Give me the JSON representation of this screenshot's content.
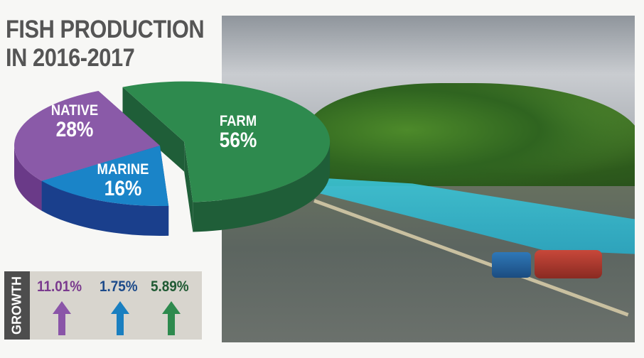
{
  "title_line1": "FISH PRODUCTION",
  "title_line2": "IN 2016-2017",
  "chart_data": {
    "type": "pie",
    "title": "FISH PRODUCTION IN 2016-2017",
    "style": "3d-exploded",
    "slices": [
      {
        "label": "FARM",
        "value": 56,
        "display": "56%",
        "color": "#2e8a4e",
        "side_color": "#1f5e38"
      },
      {
        "label": "MARINE",
        "value": 16,
        "display": "16%",
        "color": "#1a84c8",
        "side_color": "#1a3f8c"
      },
      {
        "label": "NATIVE",
        "value": 28,
        "display": "28%",
        "color": "#8a5aa8",
        "side_color": "#6a3a88"
      }
    ]
  },
  "growth": {
    "label": "GROWTH",
    "items": [
      {
        "category": "NATIVE",
        "value": "11.01%",
        "color": "#7a3a8e",
        "arrow_color": "#8a55a8",
        "icon": "arrow-up-icon"
      },
      {
        "category": "MARINE",
        "value": "1.75%",
        "color": "#1c4a8a",
        "arrow_color": "#1a7fc0",
        "icon": "arrow-up-icon"
      },
      {
        "category": "FARM",
        "value": "5.89%",
        "color": "#1f5a33",
        "arrow_color": "#2e8a4e",
        "icon": "arrow-up-icon"
      }
    ]
  }
}
